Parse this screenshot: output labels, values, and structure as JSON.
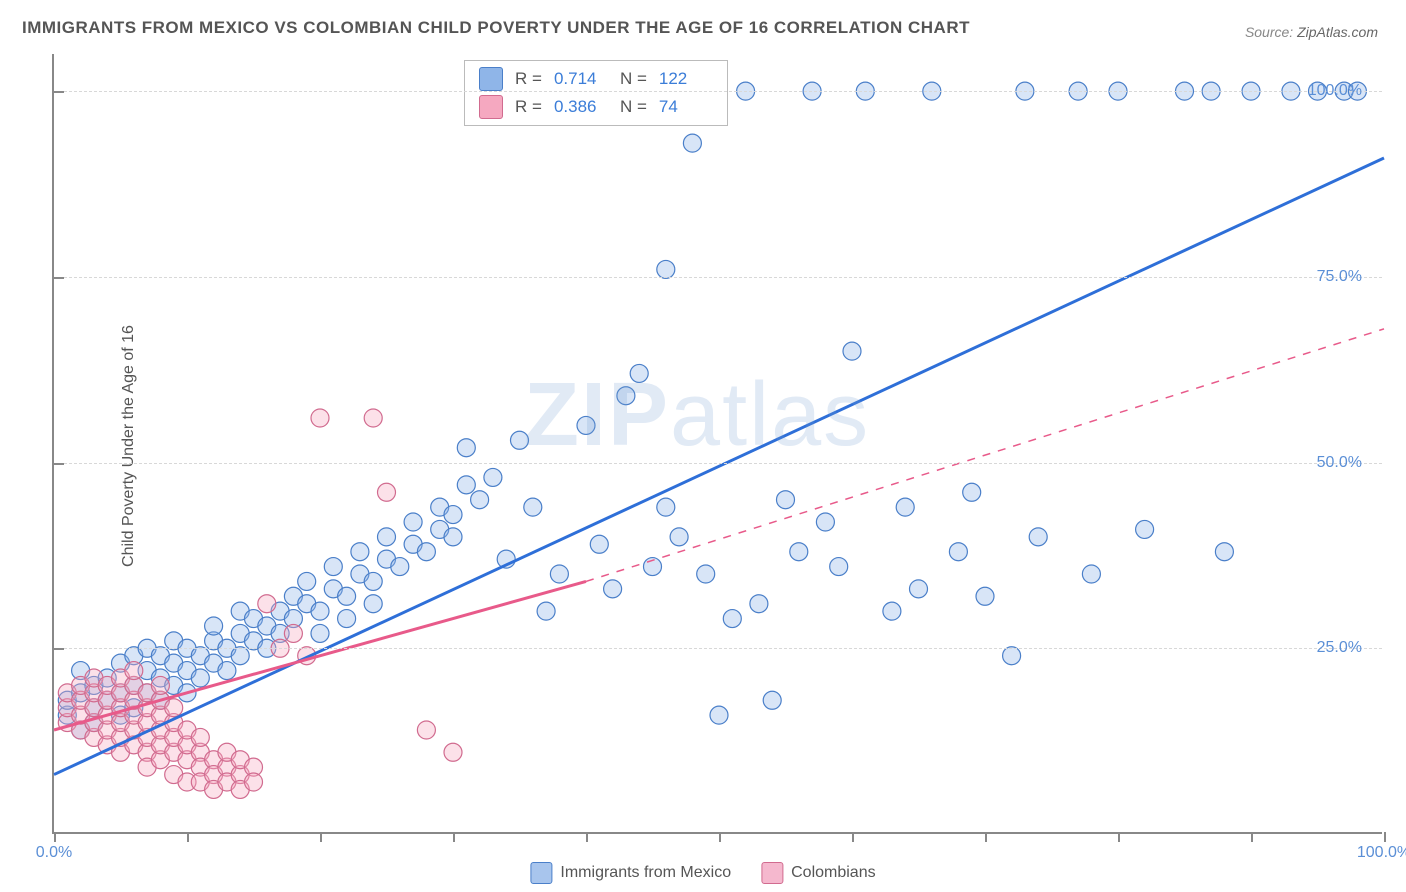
{
  "title": "IMMIGRANTS FROM MEXICO VS COLOMBIAN CHILD POVERTY UNDER THE AGE OF 16 CORRELATION CHART",
  "source_label": "Source:",
  "source_value": "ZipAtlas.com",
  "y_axis_label": "Child Poverty Under the Age of 16",
  "watermark_parts": [
    "ZIP",
    "atlas"
  ],
  "chart": {
    "type": "scatter",
    "background_color": "#ffffff",
    "grid_color": "#d8d8d8",
    "axis_color": "#888888",
    "xlim": [
      0,
      100
    ],
    "ylim": [
      0,
      105
    ],
    "y_ticks": [
      25,
      50,
      75,
      100
    ],
    "y_tick_labels": [
      "25.0%",
      "50.0%",
      "75.0%",
      "100.0%"
    ],
    "x_tick_labels": [
      "0.0%",
      "100.0%"
    ],
    "x_tick_positions": [
      0,
      100
    ],
    "x_minor_ticks": [
      0,
      10,
      20,
      30,
      40,
      50,
      60,
      70,
      80,
      90,
      100
    ],
    "marker_radius": 9,
    "marker_stroke_width": 1.2,
    "marker_fill_opacity": 0.35,
    "trend_line_width": 3,
    "series": [
      {
        "name": "Immigrants from Mexico",
        "color_fill": "#8fb5e8",
        "color_stroke": "#4a7fc9",
        "line_color": "#2e6fd8",
        "R": "0.714",
        "N": "122",
        "trend": {
          "x1": 0,
          "y1": 8,
          "x2": 100,
          "y2": 91
        },
        "trend_dash": "none",
        "points": [
          [
            1,
            16
          ],
          [
            1,
            18
          ],
          [
            2,
            14
          ],
          [
            2,
            19
          ],
          [
            2,
            22
          ],
          [
            3,
            17
          ],
          [
            3,
            20
          ],
          [
            3,
            15
          ],
          [
            4,
            18
          ],
          [
            4,
            21
          ],
          [
            5,
            16
          ],
          [
            5,
            19
          ],
          [
            5,
            23
          ],
          [
            6,
            20
          ],
          [
            6,
            24
          ],
          [
            6,
            17
          ],
          [
            7,
            22
          ],
          [
            7,
            19
          ],
          [
            7,
            25
          ],
          [
            8,
            21
          ],
          [
            8,
            18
          ],
          [
            8,
            24
          ],
          [
            9,
            23
          ],
          [
            9,
            20
          ],
          [
            9,
            26
          ],
          [
            10,
            22
          ],
          [
            10,
            25
          ],
          [
            10,
            19
          ],
          [
            11,
            24
          ],
          [
            11,
            21
          ],
          [
            12,
            26
          ],
          [
            12,
            23
          ],
          [
            12,
            28
          ],
          [
            13,
            25
          ],
          [
            13,
            22
          ],
          [
            14,
            27
          ],
          [
            14,
            24
          ],
          [
            14,
            30
          ],
          [
            15,
            26
          ],
          [
            15,
            29
          ],
          [
            16,
            28
          ],
          [
            16,
            25
          ],
          [
            17,
            30
          ],
          [
            17,
            27
          ],
          [
            18,
            29
          ],
          [
            18,
            32
          ],
          [
            19,
            31
          ],
          [
            19,
            34
          ],
          [
            20,
            30
          ],
          [
            20,
            27
          ],
          [
            21,
            33
          ],
          [
            21,
            36
          ],
          [
            22,
            32
          ],
          [
            22,
            29
          ],
          [
            23,
            35
          ],
          [
            23,
            38
          ],
          [
            24,
            34
          ],
          [
            24,
            31
          ],
          [
            25,
            37
          ],
          [
            25,
            40
          ],
          [
            26,
            36
          ],
          [
            27,
            39
          ],
          [
            27,
            42
          ],
          [
            28,
            38
          ],
          [
            29,
            41
          ],
          [
            29,
            44
          ],
          [
            30,
            40
          ],
          [
            30,
            43
          ],
          [
            31,
            47
          ],
          [
            31,
            52
          ],
          [
            32,
            45
          ],
          [
            33,
            48
          ],
          [
            34,
            37
          ],
          [
            35,
            53
          ],
          [
            36,
            44
          ],
          [
            37,
            30
          ],
          [
            38,
            35
          ],
          [
            40,
            55
          ],
          [
            41,
            39
          ],
          [
            42,
            33
          ],
          [
            43,
            59
          ],
          [
            44,
            62
          ],
          [
            45,
            36
          ],
          [
            46,
            44
          ],
          [
            46,
            76
          ],
          [
            47,
            40
          ],
          [
            48,
            93
          ],
          [
            49,
            35
          ],
          [
            50,
            16
          ],
          [
            51,
            29
          ],
          [
            52,
            100
          ],
          [
            53,
            31
          ],
          [
            54,
            18
          ],
          [
            55,
            45
          ],
          [
            56,
            38
          ],
          [
            57,
            100
          ],
          [
            58,
            42
          ],
          [
            59,
            36
          ],
          [
            60,
            65
          ],
          [
            61,
            100
          ],
          [
            63,
            30
          ],
          [
            64,
            44
          ],
          [
            65,
            33
          ],
          [
            66,
            100
          ],
          [
            68,
            38
          ],
          [
            69,
            46
          ],
          [
            70,
            32
          ],
          [
            72,
            24
          ],
          [
            73,
            100
          ],
          [
            74,
            40
          ],
          [
            77,
            100
          ],
          [
            78,
            35
          ],
          [
            80,
            100
          ],
          [
            82,
            41
          ],
          [
            85,
            100
          ],
          [
            87,
            100
          ],
          [
            88,
            38
          ],
          [
            90,
            100
          ],
          [
            93,
            100
          ],
          [
            95,
            100
          ],
          [
            97,
            100
          ],
          [
            98,
            100
          ]
        ]
      },
      {
        "name": "Colombians",
        "color_fill": "#f5a8c0",
        "color_stroke": "#d16b8f",
        "line_color": "#e85a8a",
        "R": "0.386",
        "N": "74",
        "trend_solid": {
          "x1": 0,
          "y1": 14,
          "x2": 40,
          "y2": 34
        },
        "trend_dash_seg": {
          "x1": 40,
          "y1": 34,
          "x2": 100,
          "y2": 68
        },
        "points": [
          [
            1,
            15
          ],
          [
            1,
            17
          ],
          [
            1,
            19
          ],
          [
            2,
            14
          ],
          [
            2,
            16
          ],
          [
            2,
            18
          ],
          [
            2,
            20
          ],
          [
            3,
            13
          ],
          [
            3,
            15
          ],
          [
            3,
            17
          ],
          [
            3,
            19
          ],
          [
            3,
            21
          ],
          [
            4,
            12
          ],
          [
            4,
            14
          ],
          [
            4,
            16
          ],
          [
            4,
            18
          ],
          [
            4,
            20
          ],
          [
            5,
            11
          ],
          [
            5,
            13
          ],
          [
            5,
            15
          ],
          [
            5,
            17
          ],
          [
            5,
            19
          ],
          [
            5,
            21
          ],
          [
            6,
            12
          ],
          [
            6,
            14
          ],
          [
            6,
            16
          ],
          [
            6,
            18
          ],
          [
            6,
            20
          ],
          [
            6,
            22
          ],
          [
            7,
            11
          ],
          [
            7,
            13
          ],
          [
            7,
            15
          ],
          [
            7,
            17
          ],
          [
            7,
            19
          ],
          [
            7,
            9
          ],
          [
            8,
            10
          ],
          [
            8,
            12
          ],
          [
            8,
            14
          ],
          [
            8,
            16
          ],
          [
            8,
            18
          ],
          [
            8,
            20
          ],
          [
            9,
            11
          ],
          [
            9,
            13
          ],
          [
            9,
            15
          ],
          [
            9,
            17
          ],
          [
            9,
            8
          ],
          [
            10,
            10
          ],
          [
            10,
            12
          ],
          [
            10,
            14
          ],
          [
            10,
            7
          ],
          [
            11,
            11
          ],
          [
            11,
            13
          ],
          [
            11,
            9
          ],
          [
            11,
            7
          ],
          [
            12,
            10
          ],
          [
            12,
            8
          ],
          [
            12,
            6
          ],
          [
            13,
            9
          ],
          [
            13,
            7
          ],
          [
            13,
            11
          ],
          [
            14,
            8
          ],
          [
            14,
            10
          ],
          [
            14,
            6
          ],
          [
            15,
            9
          ],
          [
            15,
            7
          ],
          [
            16,
            31
          ],
          [
            17,
            25
          ],
          [
            18,
            27
          ],
          [
            19,
            24
          ],
          [
            20,
            56
          ],
          [
            24,
            56
          ],
          [
            25,
            46
          ],
          [
            28,
            14
          ],
          [
            30,
            11
          ]
        ]
      }
    ],
    "bottom_legend": [
      {
        "label": "Immigrants from Mexico",
        "fill": "#a8c5ed",
        "stroke": "#4a7fc9"
      },
      {
        "label": "Colombians",
        "fill": "#f5b8ce",
        "stroke": "#d16b8f"
      }
    ]
  }
}
